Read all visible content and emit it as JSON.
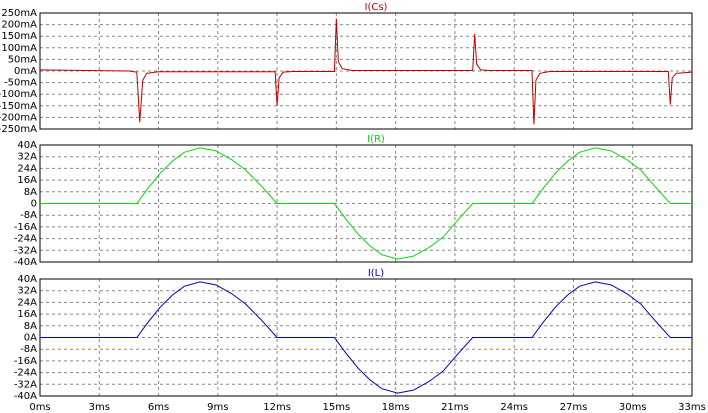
{
  "chart_data": [
    {
      "type": "line",
      "grid": true,
      "xlim": [
        0,
        33
      ],
      "ylim": [
        -250,
        250
      ],
      "yticks": [
        {
          "value": 250,
          "label": "250mA"
        },
        {
          "value": 200,
          "label": "200mA"
        },
        {
          "value": 150,
          "label": "150mA"
        },
        {
          "value": 100,
          "label": "100mA"
        },
        {
          "value": 50,
          "label": "50mA"
        },
        {
          "value": 0,
          "label": "0mA"
        },
        {
          "value": -50,
          "label": "-50mA"
        },
        {
          "value": -100,
          "label": "-100mA"
        },
        {
          "value": -150,
          "label": "-150mA"
        },
        {
          "value": -200,
          "label": "-200mA"
        },
        {
          "value": -250,
          "label": "-250mA"
        }
      ],
      "x": [
        0,
        4.5,
        4.9,
        5.05,
        5.2,
        5.4,
        6,
        11.9,
        12.0,
        12.1,
        12.3,
        12.8,
        14.9,
        15.0,
        15.1,
        15.3,
        15.8,
        21.9,
        22.0,
        22.1,
        22.3,
        22.8,
        24.9,
        25.0,
        25.1,
        25.3,
        25.8,
        31.8,
        31.9,
        32.0,
        32.2,
        33
      ],
      "series": [
        {
          "name": "I(Cs)",
          "color": "#c00000",
          "values": [
            5,
            0,
            -5,
            -220,
            -40,
            -10,
            -3,
            -3,
            -150,
            -30,
            -5,
            -2,
            -2,
            225,
            40,
            10,
            2,
            2,
            160,
            30,
            5,
            2,
            2,
            -230,
            -40,
            -10,
            -2,
            -2,
            -145,
            -30,
            -10,
            -5
          ]
        }
      ]
    },
    {
      "type": "line",
      "grid": true,
      "xlim": [
        0,
        33
      ],
      "ylim": [
        -40,
        40
      ],
      "yticks": [
        {
          "value": 40,
          "label": "40A"
        },
        {
          "value": 32,
          "label": "32A"
        },
        {
          "value": 24,
          "label": "24A"
        },
        {
          "value": 16,
          "label": "16A"
        },
        {
          "value": 8,
          "label": "8A"
        },
        0,
        {
          "value": -8,
          "label": "-8A"
        },
        {
          "value": -16,
          "label": "-16A"
        },
        {
          "value": -24,
          "label": "-24A"
        },
        {
          "value": -32,
          "label": "-32A"
        },
        {
          "value": -40,
          "label": "-40A"
        }
      ],
      "x": [
        0,
        4.9,
        5.5,
        6.1,
        6.7,
        7.3,
        8.1,
        8.9,
        9.7,
        10.4,
        11.2,
        12.0,
        14.9,
        15.5,
        16.1,
        16.7,
        17.3,
        18.1,
        18.9,
        19.7,
        20.4,
        21.1,
        21.9,
        24.9,
        25.5,
        26.1,
        26.7,
        27.3,
        28.1,
        28.9,
        29.7,
        30.4,
        31.1,
        31.9,
        33
      ],
      "series": [
        {
          "name": "I(R)",
          "color": "#00dd00",
          "values": [
            0,
            0,
            11,
            21,
            29,
            35,
            38,
            36,
            30,
            23,
            12,
            0,
            0,
            -11,
            -21,
            -29,
            -35,
            -38,
            -36,
            -30,
            -23,
            -12,
            0,
            0,
            11,
            21,
            29,
            35,
            38,
            36,
            30,
            23,
            12,
            0,
            0
          ]
        }
      ]
    },
    {
      "type": "line",
      "grid": true,
      "xlim": [
        0,
        33
      ],
      "ylim": [
        -40,
        40
      ],
      "yticks": [
        {
          "value": 40,
          "label": "40A"
        },
        {
          "value": 32,
          "label": "32A"
        },
        {
          "value": 24,
          "label": "24A"
        },
        {
          "value": 16,
          "label": "16A"
        },
        {
          "value": 8,
          "label": "8A"
        },
        {
          "value": 0,
          "label": "0A"
        },
        {
          "value": -8,
          "label": "-8A"
        },
        {
          "value": -16,
          "label": "-16A"
        },
        {
          "value": -24,
          "label": "-24A"
        },
        {
          "value": -32,
          "label": "-32A"
        },
        {
          "value": -40,
          "label": "-40A"
        }
      ],
      "xticks": [
        {
          "value": 0,
          "label": "0ms"
        },
        {
          "value": 3,
          "label": "3ms"
        },
        {
          "value": 6,
          "label": "6ms"
        },
        {
          "value": 9,
          "label": "9ms"
        },
        {
          "value": 12,
          "label": "12ms"
        },
        {
          "value": 15,
          "label": "15ms"
        },
        {
          "value": 18,
          "label": "18ms"
        },
        {
          "value": 21,
          "label": "21ms"
        },
        {
          "value": 24,
          "label": "24ms"
        },
        {
          "value": 27,
          "label": "27ms"
        },
        {
          "value": 30,
          "label": "30ms"
        },
        {
          "value": 33,
          "label": "33ms"
        }
      ],
      "x": [
        0,
        4.9,
        5.5,
        6.1,
        6.7,
        7.3,
        8.1,
        8.9,
        9.7,
        10.4,
        11.2,
        12.0,
        14.9,
        15.5,
        16.1,
        16.7,
        17.3,
        18.1,
        18.9,
        19.7,
        20.4,
        21.1,
        21.9,
        24.9,
        25.5,
        26.1,
        26.7,
        27.3,
        28.1,
        28.9,
        29.7,
        30.4,
        31.1,
        31.9,
        33
      ],
      "series": [
        {
          "name": "I(L)",
          "color": "#0000c0",
          "values": [
            0,
            0,
            11,
            21,
            29,
            35,
            38,
            36,
            30,
            23,
            12,
            0,
            0,
            -11,
            -21,
            -29,
            -35,
            -38,
            -36,
            -30,
            -23,
            -12,
            0,
            0,
            11,
            21,
            29,
            35,
            38,
            36,
            30,
            23,
            12,
            0,
            0
          ]
        }
      ]
    }
  ]
}
